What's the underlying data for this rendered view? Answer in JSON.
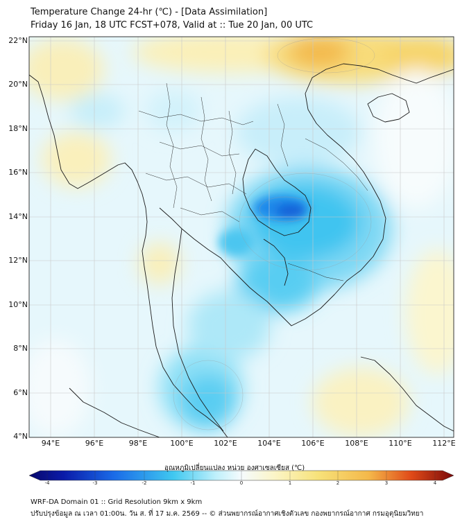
{
  "title": {
    "line1": "Temperature Change 24-hr (℃) - [Data Assimilation]",
    "line2": "Friday 16 Jan, 18 UTC FCST+078, Valid at :: Tue 20 Jan, 00 UTC"
  },
  "map": {
    "lat_labels": [
      "22°N",
      "20°N",
      "18°N",
      "16°N",
      "14°N",
      "12°N",
      "10°N",
      "8°N",
      "6°N",
      "4°N"
    ],
    "lon_labels": [
      "94°E",
      "96°E",
      "98°E",
      "100°E",
      "102°E",
      "104°E",
      "106°E",
      "108°E",
      "110°E",
      "112°E"
    ]
  },
  "colorbar": {
    "title": "อุณหภูมิเปลี่ยนแปลง หน่วย องศาเซลเซียส (℃)",
    "ticks": [
      "-4",
      "-3",
      "-2",
      "-1",
      "0",
      "1",
      "2",
      "3",
      "4"
    ],
    "colors": {
      "cold_max": "#08086b",
      "cold": "#1a6be8",
      "cool": "#40c8f0",
      "neutral": "#f5fbfd",
      "warm": "#f7e27a",
      "hot": "#f08a20",
      "hot_max": "#7a0a0a"
    }
  },
  "footer": {
    "line1": "WRF-DA Domain 01 :: Grid Resolution 9km x 9km",
    "line2": "ปรับปรุงข้อมูล ณ เวลา 01:00น. วัน ส. ที่ 17 ม.ค. 2569 -- © ส่วนพยากรณ์อากาศเชิงตัวเลข กองพยากรณ์อากาศ กรมอุตุนิยมวิทยา"
  }
}
